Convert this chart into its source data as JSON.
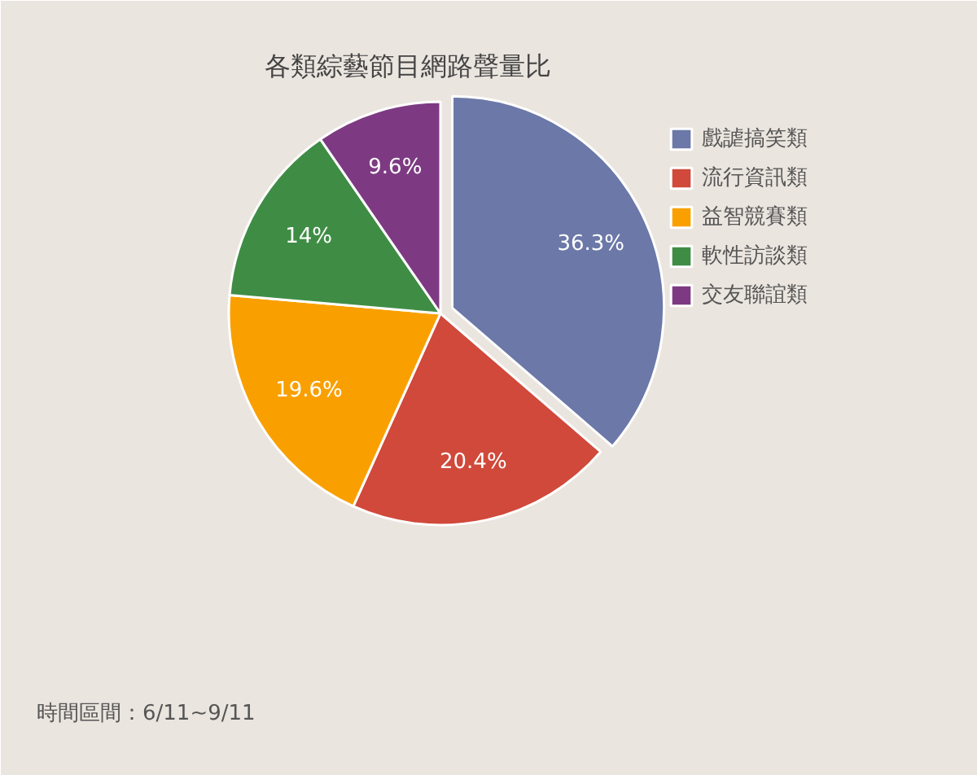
{
  "chart_data": {
    "type": "pie",
    "title": "各類綜藝節目網路聲量比",
    "categories": [
      "戲謔搞笑類",
      "流行資訊類",
      "益智競賽類",
      "軟性訪談類",
      "交友聯誼類"
    ],
    "values": [
      36.3,
      20.4,
      19.6,
      14,
      9.6
    ],
    "colors": [
      "#6b78a8",
      "#d0493a",
      "#f9a000",
      "#3f8d45",
      "#7d3a82"
    ],
    "value_labels": [
      "36.3%",
      "20.4%",
      "19.6%",
      "14%",
      "9.6%"
    ],
    "legend": "top right",
    "annotations": [
      "時間區間：6/11~9/11"
    ]
  }
}
